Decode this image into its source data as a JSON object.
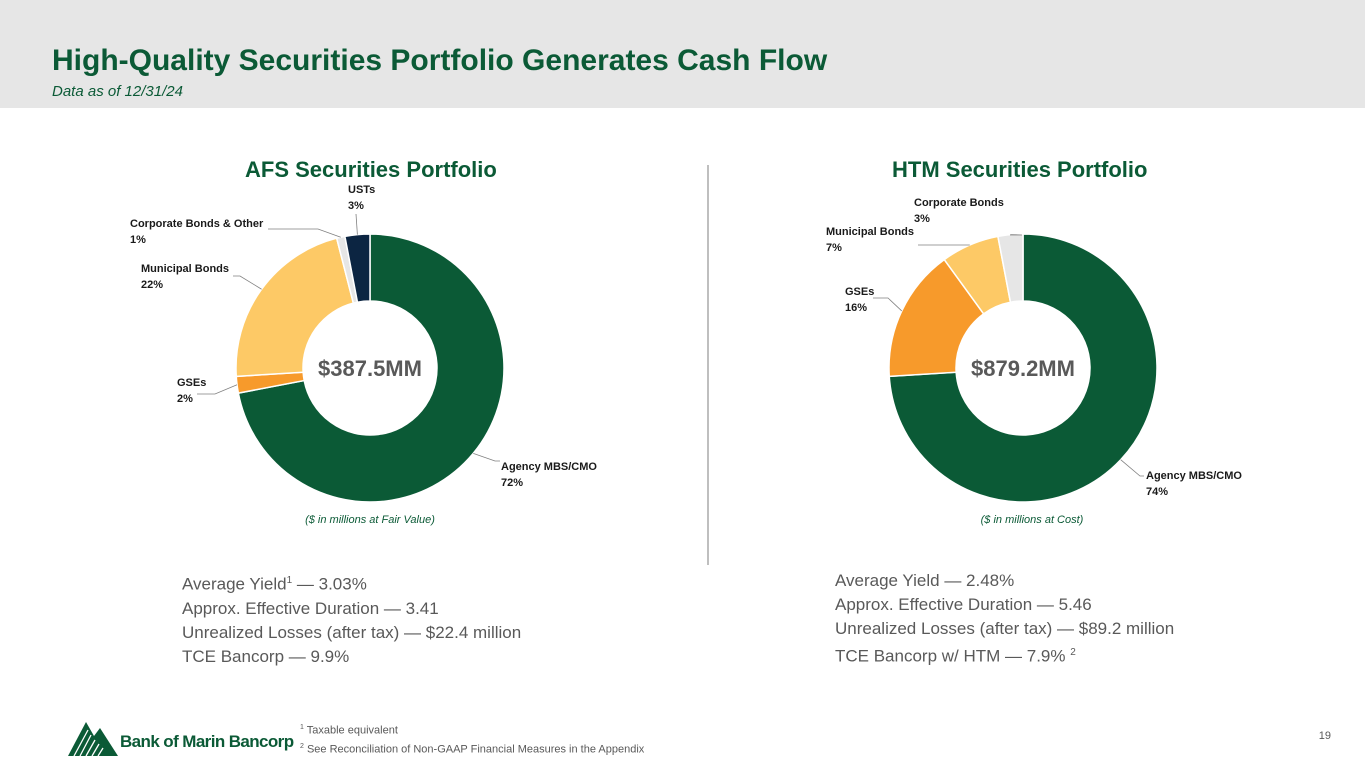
{
  "header": {
    "title": "High-Quality Securities Portfolio Generates Cash Flow",
    "subtitle": "Data as of 12/31/24"
  },
  "chart_data": [
    {
      "type": "pie",
      "title": "AFS Securities Portfolio",
      "center_label": "$387.5MM",
      "basis_note": "($ in millions at Fair Value)",
      "categories": [
        "Agency MBS/CMO",
        "GSEs",
        "Municipal Bonds",
        "Corporate Bonds & Other",
        "USTs"
      ],
      "values": [
        72,
        2,
        22,
        1,
        3
      ],
      "value_labels": [
        "72%",
        "2%",
        "22%",
        "1%",
        "3%"
      ],
      "colors": [
        "#0b5a36",
        "#f79a2b",
        "#fdc966",
        "#e6e6e6",
        "#0c2542"
      ]
    },
    {
      "type": "pie",
      "title": "HTM Securities Portfolio",
      "center_label": "$879.2MM",
      "basis_note": "($ in millions at Cost)",
      "categories": [
        "Agency MBS/CMO",
        "GSEs",
        "Municipal Bonds",
        "Corporate Bonds"
      ],
      "values": [
        74,
        16,
        7,
        3
      ],
      "value_labels": [
        "74%",
        "16%",
        "7%",
        "3%"
      ],
      "colors": [
        "#0b5a36",
        "#f79a2b",
        "#fdc966",
        "#e6e6e6"
      ]
    }
  ],
  "afs_stats": {
    "yield": "Average Yield",
    "yield_sup": "1",
    "yield_value": " — 3.03%",
    "duration": "Approx. Effective Duration — 3.41",
    "losses": "Unrealized Losses (after tax) — $22.4 million",
    "tce": "TCE Bancorp — 9.9%"
  },
  "htm_stats": {
    "yield": "Average Yield — 2.48%",
    "duration": "Approx. Effective Duration — 5.46",
    "losses": "Unrealized Losses (after tax) — $89.2 million",
    "tce": "TCE Bancorp w/ HTM — 7.9% ",
    "tce_sup": "2"
  },
  "footer": {
    "note1_num": "1",
    "note1": " Taxable equivalent",
    "note2_num": "2",
    "note2": " See Reconciliation of Non-GAAP Financial Measures in the Appendix",
    "page_number": "19",
    "logo_text": "Bank of Marin Bancorp"
  }
}
